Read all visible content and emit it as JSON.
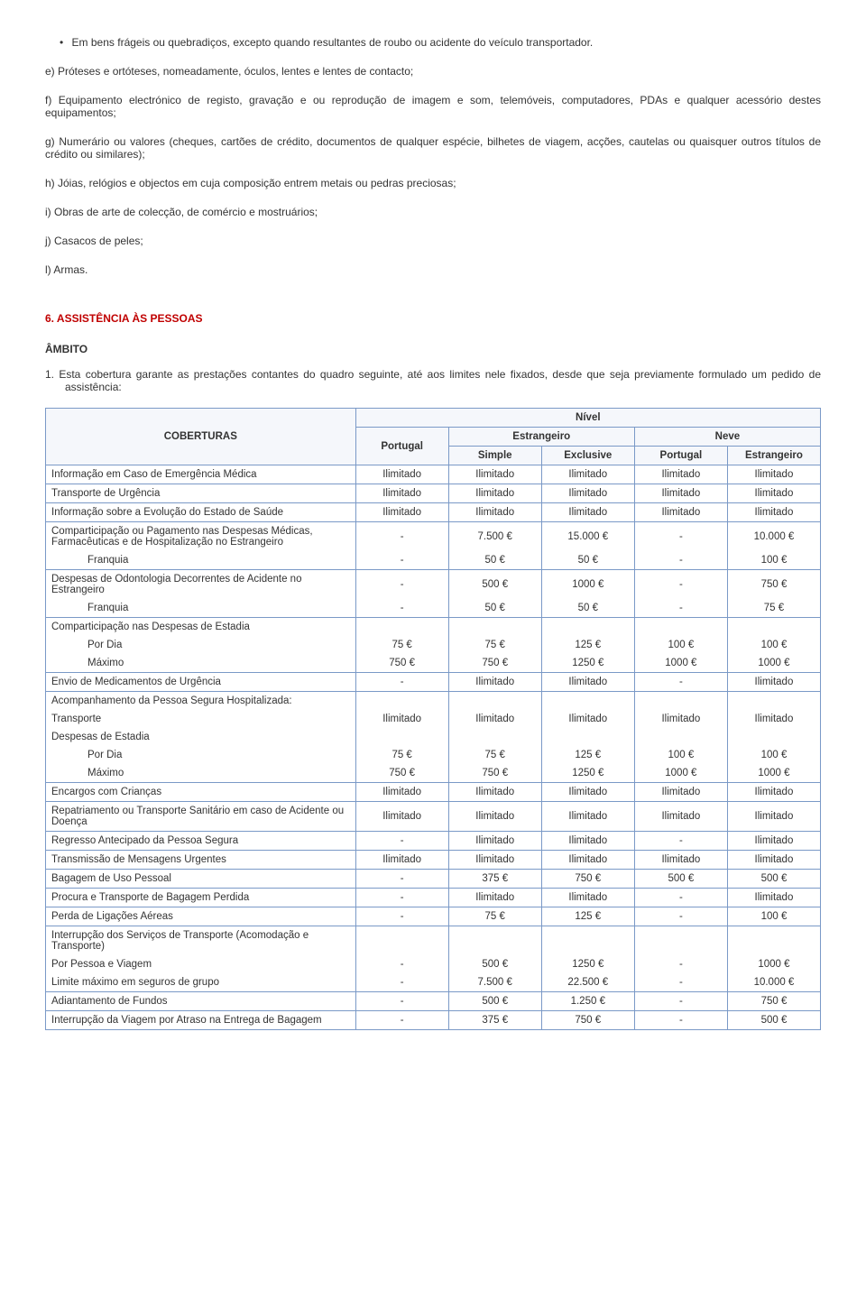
{
  "paragraphs": {
    "bullet": "Em bens frágeis ou quebradiços, excepto quando resultantes de roubo ou acidente do veículo transportador.",
    "e": "e) Próteses e ortóteses, nomeadamente, óculos, lentes e lentes de contacto;",
    "f": "f) Equipamento electrónico de registo, gravação e ou reprodução de imagem e som, telemóveis, computadores, PDAs e qualquer acessório destes equipamentos;",
    "g": "g) Numerário ou valores (cheques, cartões de crédito, documentos de qualquer espécie, bilhetes de viagem, acções, cautelas ou quaisquer outros títulos de crédito ou similares);",
    "h": "h) Jóias, relógios e objectos em cuja composição entrem metais ou pedras preciosas;",
    "i": "i) Obras de arte de colecção, de comércio e mostruários;",
    "j": "j) Casacos de peles;",
    "l": "l) Armas."
  },
  "section6": "6. ASSISTÊNCIA ÀS PESSOAS",
  "ambito": "ÂMBITO",
  "numpara": "1.   Esta cobertura garante as prestações contantes do quadro seguinte, até aos limites nele fixados, desde que seja previamente formulado um pedido de assistência:",
  "table": {
    "head": {
      "coberturas": "COBERTURAS",
      "nivel": "Nível",
      "portugal": "Portugal",
      "estrangeiro": "Estrangeiro",
      "neve": "Neve",
      "simple": "Simple",
      "exclusive": "Exclusive"
    },
    "rows": [
      {
        "type": "simple",
        "label": "Informação em Caso de Emergência Médica",
        "v": [
          "Ilimitado",
          "Ilimitado",
          "Ilimitado",
          "Ilimitado",
          "Ilimitado"
        ]
      },
      {
        "type": "simple",
        "label": "Transporte de Urgência",
        "v": [
          "Ilimitado",
          "Ilimitado",
          "Ilimitado",
          "Ilimitado",
          "Ilimitado"
        ]
      },
      {
        "type": "simple",
        "label": "Informação sobre a Evolução do Estado de Saúde",
        "v": [
          "Ilimitado",
          "Ilimitado",
          "Ilimitado",
          "Ilimitado",
          "Ilimitado"
        ]
      },
      {
        "type": "group2",
        "label1": "Comparticipação ou Pagamento nas Despesas Médicas, Farmacêuticas e de Hospitalização no Estrangeiro",
        "v1": [
          "-",
          "7.500 €",
          "15.000 €",
          "-",
          "10.000 €"
        ],
        "label2": "Franquia",
        "v2": [
          "-",
          "50 €",
          "50 €",
          "-",
          "100 €"
        ]
      },
      {
        "type": "group2",
        "label1": "Despesas de Odontologia Decorrentes de Acidente no Estrangeiro",
        "v1": [
          "-",
          "500 €",
          "1000 €",
          "-",
          "750 €"
        ],
        "label2": "Franquia",
        "v2": [
          "-",
          "50 €",
          "50 €",
          "-",
          "75 €"
        ]
      },
      {
        "type": "group3",
        "label0": "Comparticipação nas Despesas de Estadia",
        "label1": "Por Dia",
        "v1": [
          "75 €",
          "75 €",
          "125 €",
          "100 €",
          "100 €"
        ],
        "label2": "Máximo",
        "v2": [
          "750 €",
          "750 €",
          "1250 €",
          "1000 €",
          "1000 €"
        ]
      },
      {
        "type": "simple",
        "label": "Envio de Medicamentos de Urgência",
        "v": [
          "-",
          "Ilimitado",
          "Ilimitado",
          "-",
          "Ilimitado"
        ]
      },
      {
        "type": "group5",
        "label0": "Acompanhamento da Pessoa Segura Hospitalizada:",
        "label1": "Transporte",
        "v1": [
          "Ilimitado",
          "Ilimitado",
          "Ilimitado",
          "Ilimitado",
          "Ilimitado"
        ],
        "label2": "Despesas de Estadia",
        "label3": "Por Dia",
        "v3": [
          "75 €",
          "75 €",
          "125 €",
          "100 €",
          "100 €"
        ],
        "label4": "Máximo",
        "v4": [
          "750 €",
          "750 €",
          "1250 €",
          "1000 €",
          "1000 €"
        ]
      },
      {
        "type": "simple",
        "label": "Encargos com Crianças",
        "v": [
          "Ilimitado",
          "Ilimitado",
          "Ilimitado",
          "Ilimitado",
          "Ilimitado"
        ]
      },
      {
        "type": "simple",
        "label": "Repatriamento ou Transporte Sanitário em caso de Acidente ou Doença",
        "v": [
          "Ilimitado",
          "Ilimitado",
          "Ilimitado",
          "Ilimitado",
          "Ilimitado"
        ]
      },
      {
        "type": "simple",
        "label": "Regresso Antecipado da Pessoa Segura",
        "v": [
          "-",
          "Ilimitado",
          "Ilimitado",
          "-",
          "Ilimitado"
        ]
      },
      {
        "type": "simple",
        "label": "Transmissão de Mensagens Urgentes",
        "v": [
          "Ilimitado",
          "Ilimitado",
          "Ilimitado",
          "Ilimitado",
          "Ilimitado"
        ]
      },
      {
        "type": "simple",
        "label": "Bagagem de Uso Pessoal",
        "v": [
          "-",
          "375 €",
          "750 €",
          "500 €",
          "500 €"
        ]
      },
      {
        "type": "simple",
        "label": "Procura e Transporte de Bagagem Perdida",
        "v": [
          "-",
          "Ilimitado",
          "Ilimitado",
          "-",
          "Ilimitado"
        ]
      },
      {
        "type": "simple",
        "label": "Perda de Ligações Aéreas",
        "v": [
          "-",
          "75 €",
          "125 €",
          "-",
          "100 €"
        ]
      },
      {
        "type": "group3b",
        "label0": "Interrupção dos Serviços de Transporte (Acomodação e Transporte)",
        "label1": "Por Pessoa e Viagem",
        "v1": [
          "-",
          "500 €",
          "1250 €",
          "-",
          "1000 €"
        ],
        "label2": "Limite máximo em seguros de grupo",
        "v2": [
          "-",
          "7.500 €",
          "22.500 €",
          "-",
          "10.000 €"
        ]
      },
      {
        "type": "simple",
        "label": "Adiantamento de Fundos",
        "v": [
          "-",
          "500 €",
          "1.250 €",
          "-",
          "750 €"
        ]
      },
      {
        "type": "simple",
        "label": "Interrupção da Viagem por Atraso na Entrega de Bagagem",
        "v": [
          "-",
          "375 €",
          "750 €",
          "-",
          "500 €"
        ]
      }
    ]
  }
}
